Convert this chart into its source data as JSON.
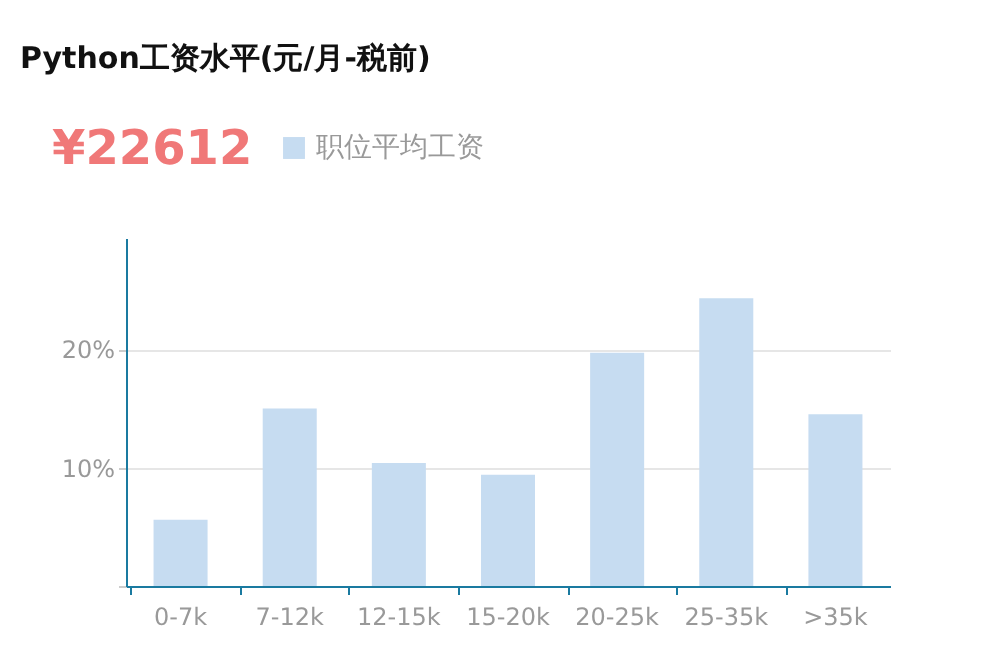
{
  "chart_data": {
    "type": "bar",
    "title": "Python工资水平(元/月-税前)",
    "annotations": [
      "¥22612"
    ],
    "categories": [
      "0-7k",
      "7-12k",
      "12-15k",
      "15-20k",
      "20-25k",
      "25-35k",
      ">35k"
    ],
    "series": [
      {
        "name": "职位平均工资",
        "color": "#c6dcf1",
        "values": [
          5.6,
          15.0,
          10.4,
          9.4,
          19.7,
          24.3,
          14.5
        ]
      }
    ],
    "ylim": [
      0,
      29.4
    ],
    "yticks": [
      {
        "value": 0,
        "label": null
      },
      {
        "value": 10,
        "label": "10%"
      },
      {
        "value": 20,
        "label": "20%"
      }
    ],
    "grid": "y",
    "legend": "top left"
  }
}
